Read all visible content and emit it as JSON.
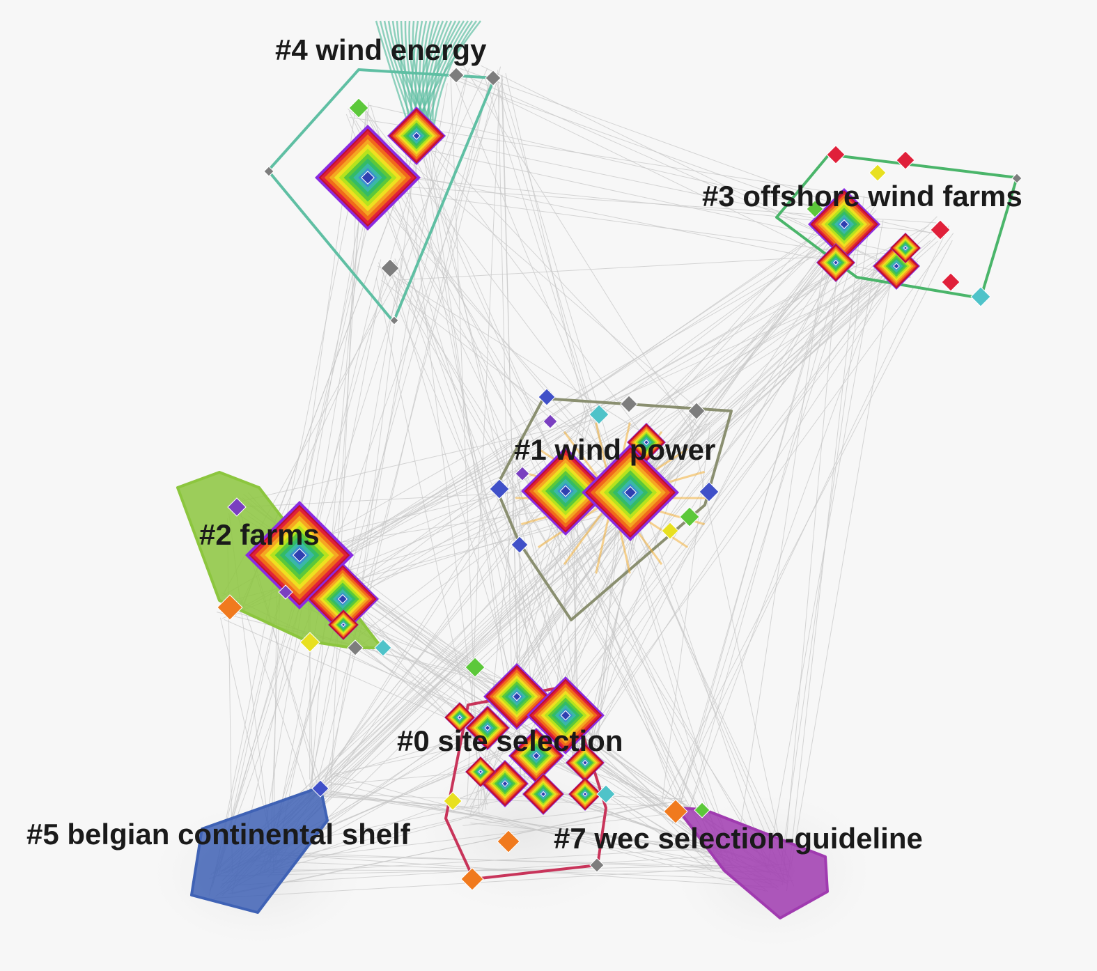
{
  "clusters": [
    {
      "id": 4,
      "label": "#4 wind energy",
      "color": "#5fbfa3"
    },
    {
      "id": 3,
      "label": "#3 offshore wind farms",
      "color": "#4ab56a"
    },
    {
      "id": 1,
      "label": "#1 wind power",
      "color": "#8a8f70"
    },
    {
      "id": 2,
      "label": "#2 farms",
      "color": "#8cc63e"
    },
    {
      "id": 0,
      "label": "#0 site selection",
      "color": "#c8345a"
    },
    {
      "id": 5,
      "label": "#5 belgian continental shelf",
      "color": "#3f62b5"
    },
    {
      "id": 7,
      "label": "#7 wec selection-guideline",
      "color": "#a03bb0"
    }
  ],
  "ring_colors": [
    "#8a2be2",
    "#e0203a",
    "#f06a1a",
    "#f5a623",
    "#f0e020",
    "#b6e31e",
    "#5cc83a",
    "#33bb66",
    "#3ab7a8",
    "#3a8fd0",
    "#3a4fc0"
  ],
  "node_colors": {
    "red": "#e0203a",
    "orange": "#f07a1e",
    "gray": "#7d7d7d",
    "blue": "#4050c8",
    "green": "#5cc83a",
    "teal": "#4fc3c9",
    "yellow": "#e8e020",
    "purple": "#7a3fc0"
  },
  "link_color": "#c8c8c8"
}
